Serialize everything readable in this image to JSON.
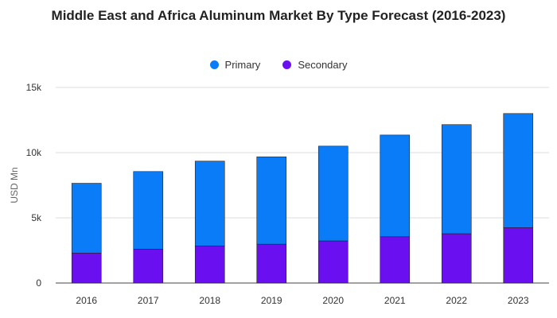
{
  "chart_data": {
    "type": "bar",
    "stacked": true,
    "title": "Middle East and Africa Aluminum Market By Type Forecast (2016-2023)",
    "xlabel": "",
    "ylabel": "USD Mn",
    "categories": [
      "2016",
      "2017",
      "2018",
      "2019",
      "2020",
      "2021",
      "2022",
      "2023"
    ],
    "series": [
      {
        "name": "Secondary",
        "color": "#6a0ff0",
        "values": [
          2300,
          2600,
          2850,
          2980,
          3230,
          3550,
          3780,
          4250
        ]
      },
      {
        "name": "Primary",
        "color": "#0a7cf8",
        "values": [
          5350,
          5950,
          6500,
          6700,
          7270,
          7800,
          8370,
          8750
        ]
      }
    ],
    "legend_order": [
      "Primary",
      "Secondary"
    ],
    "legend_position": "top",
    "ylim": [
      0,
      15000
    ],
    "yticks": [
      0,
      5000,
      10000,
      15000
    ],
    "ytick_labels": [
      "0",
      "5k",
      "10k",
      "15k"
    ],
    "grid": true
  }
}
